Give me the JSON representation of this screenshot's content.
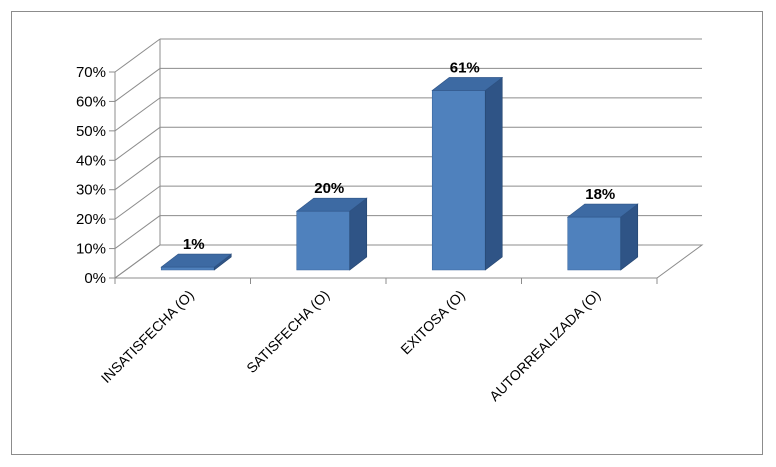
{
  "chart_data": {
    "type": "bar",
    "style": "3d-column",
    "categories": [
      "INSATISFECHA (O)",
      "SATISFECHA (O)",
      "EXITOSA (O)",
      "AUTORREALIZADA (O)"
    ],
    "values": [
      1,
      20,
      61,
      18
    ],
    "data_labels": [
      "1%",
      "20%",
      "61%",
      "18%"
    ],
    "ylim": [
      0,
      70
    ],
    "yticks": [
      0,
      10,
      20,
      30,
      40,
      50,
      60,
      70
    ],
    "ytick_labels": [
      "0%",
      "10%",
      "20%",
      "30%",
      "40%",
      "50%",
      "60%",
      "70%"
    ],
    "grid": true,
    "legend": "none",
    "title": "",
    "xlabel": "",
    "ylabel": "",
    "colors": {
      "bar_front": "#4f81bd",
      "bar_side": "#2f5486",
      "bar_top": "#3d6aa3",
      "grid": "#8c8c8c",
      "frame": "#8c8c8c"
    }
  }
}
